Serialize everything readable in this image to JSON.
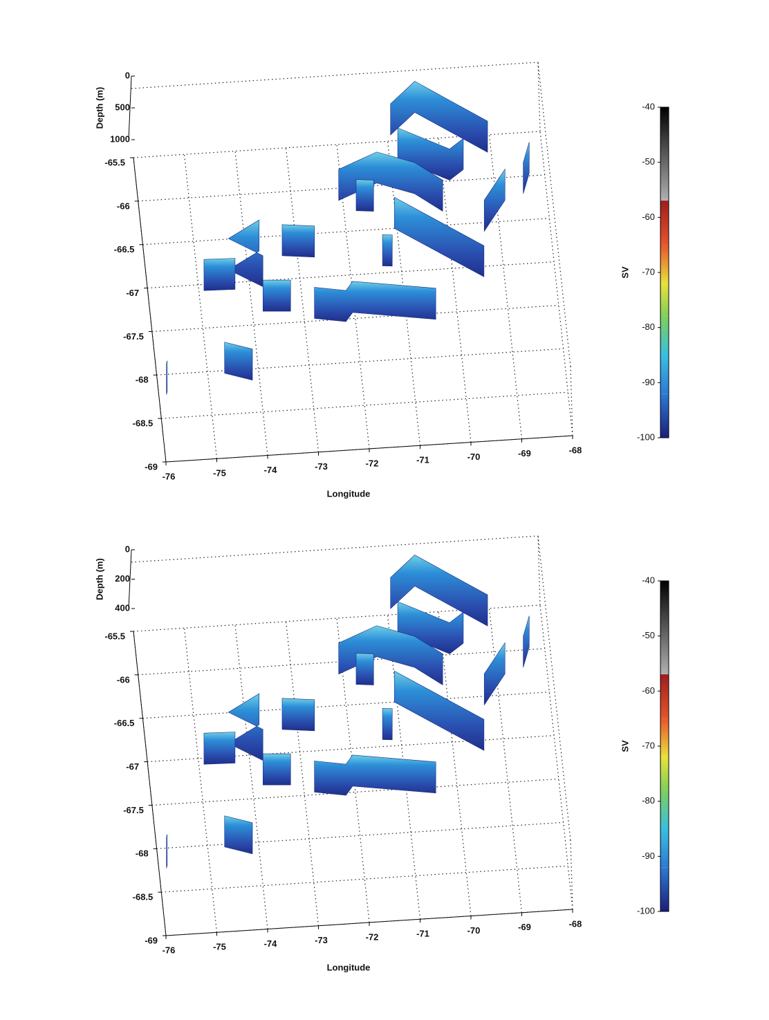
{
  "chart_data": [
    {
      "type": "echogram3d",
      "xlabel": "Longitude",
      "zlabel": "Depth (m)",
      "colorbar_label": "SV",
      "xlim": [
        -76,
        -68
      ],
      "xticks": [
        -76,
        -75,
        -74,
        -73,
        -72,
        -71,
        -70,
        -69,
        -68
      ],
      "ylim": [
        -69,
        -65.5
      ],
      "yticks": [
        -69,
        -68.5,
        -68,
        -67.5,
        -67,
        -66.5,
        -66,
        -65.5
      ],
      "zlim": [
        0,
        1000
      ],
      "zticks": [
        0,
        500,
        1000
      ],
      "clim": [
        -100,
        -40
      ],
      "cticks": [
        -100,
        -90,
        -80,
        -70,
        -60,
        -50,
        -40
      ],
      "colormap": [
        {
          "value": -100,
          "color": "#1b1f7a"
        },
        {
          "value": -92,
          "color": "#2c7bd6"
        },
        {
          "value": -85,
          "color": "#38c0e0"
        },
        {
          "value": -78,
          "color": "#7fcf5a"
        },
        {
          "value": -72,
          "color": "#e9e23a"
        },
        {
          "value": -65,
          "color": "#e8552b"
        },
        {
          "value": -57,
          "color": "#9e1d1d"
        },
        {
          "value": -56.9,
          "color": "#b0b0b0"
        },
        {
          "value": -40,
          "color": "#000000"
        }
      ],
      "transects": [
        {
          "lon": [
            -70.93,
            -70.41,
            -69.07
          ],
          "lat": [
            -65.43,
            -65.19,
            -65.7
          ]
        },
        {
          "lon": [
            -70.84,
            -69.87,
            -69.58
          ],
          "lat": [
            -65.71,
            -65.99,
            -65.88
          ]
        },
        {
          "lon": [
            -72.08,
            -71.3,
            -70.58,
            -70.07
          ],
          "lat": [
            -66.14,
            -65.97,
            -66.12,
            -66.34
          ]
        },
        {
          "lon": [
            -71.05,
            -69.4
          ],
          "lat": [
            -66.5,
            -67.12
          ]
        },
        {
          "lon": [
            -69.3,
            -68.83
          ],
          "lat": [
            -66.6,
            -66.26
          ]
        },
        {
          "lon": [
            -68.46,
            -68.3
          ],
          "lat": [
            -66.2,
            -65.97
          ]
        },
        {
          "lon": [
            -73.74,
            -74.38,
            -73.74
          ],
          "lat": [
            -66.66,
            -66.85,
            -67.07
          ]
        },
        {
          "lon": [
            -74.9,
            -74.29
          ],
          "lat": [
            -67.07,
            -67.08
          ]
        },
        {
          "lon": [
            -73.3,
            -72.67
          ],
          "lat": [
            -66.73,
            -66.77
          ]
        },
        {
          "lon": [
            -73.79,
            -73.25
          ],
          "lat": [
            -67.35,
            -67.37
          ]
        },
        {
          "lon": [
            -72.8,
            -72.19,
            -72.04,
            -70.43
          ],
          "lat": [
            -67.47,
            -67.53,
            -67.43,
            -67.57
          ]
        },
        {
          "lon": [
            -74.67,
            -74.14
          ],
          "lat": [
            -68.03,
            -68.13
          ]
        },
        {
          "lon": [
            -75.85,
            -75.83
          ],
          "lat": [
            -68.23,
            -68.2
          ]
        },
        {
          "lon": [
            -71.76,
            -71.42
          ],
          "lat": [
            -66.27,
            -66.29
          ]
        },
        {
          "lon": [
            -71.36,
            -71.17
          ],
          "lat": [
            -66.92,
            -66.93
          ]
        }
      ]
    },
    {
      "type": "echogram3d",
      "xlabel": "Longitude",
      "zlabel": "Depth (m)",
      "colorbar_label": "SV",
      "xlim": [
        -76,
        -68
      ],
      "xticks": [
        -76,
        -75,
        -74,
        -73,
        -72,
        -71,
        -70,
        -69,
        -68
      ],
      "ylim": [
        -69,
        -65.5
      ],
      "yticks": [
        -69,
        -68.5,
        -68,
        -67.5,
        -67,
        -66.5,
        -66,
        -65.5
      ],
      "zlim": [
        0,
        400
      ],
      "zticks": [
        0,
        200,
        400
      ],
      "clim": [
        -100,
        -40
      ],
      "cticks": [
        -100,
        -90,
        -80,
        -70,
        -60,
        -50,
        -40
      ],
      "colormap": [
        {
          "value": -100,
          "color": "#1b1f7a"
        },
        {
          "value": -92,
          "color": "#2c7bd6"
        },
        {
          "value": -85,
          "color": "#38c0e0"
        },
        {
          "value": -78,
          "color": "#7fcf5a"
        },
        {
          "value": -72,
          "color": "#e9e23a"
        },
        {
          "value": -65,
          "color": "#e8552b"
        },
        {
          "value": -57,
          "color": "#9e1d1d"
        },
        {
          "value": -56.9,
          "color": "#b0b0b0"
        },
        {
          "value": -40,
          "color": "#000000"
        }
      ],
      "transects": [
        {
          "lon": [
            -70.93,
            -70.41,
            -69.07
          ],
          "lat": [
            -65.43,
            -65.19,
            -65.7
          ]
        },
        {
          "lon": [
            -70.84,
            -69.87,
            -69.58
          ],
          "lat": [
            -65.71,
            -65.99,
            -65.88
          ]
        },
        {
          "lon": [
            -72.08,
            -71.3,
            -70.58,
            -70.07
          ],
          "lat": [
            -66.14,
            -65.97,
            -66.12,
            -66.34
          ]
        },
        {
          "lon": [
            -71.05,
            -69.4
          ],
          "lat": [
            -66.5,
            -67.12
          ]
        },
        {
          "lon": [
            -69.3,
            -68.83
          ],
          "lat": [
            -66.6,
            -66.26
          ]
        },
        {
          "lon": [
            -68.46,
            -68.3
          ],
          "lat": [
            -66.2,
            -65.97
          ]
        },
        {
          "lon": [
            -73.74,
            -74.38,
            -73.74
          ],
          "lat": [
            -66.66,
            -66.85,
            -67.07
          ]
        },
        {
          "lon": [
            -74.9,
            -74.29
          ],
          "lat": [
            -67.07,
            -67.08
          ]
        },
        {
          "lon": [
            -73.3,
            -72.67
          ],
          "lat": [
            -66.73,
            -66.77
          ]
        },
        {
          "lon": [
            -73.79,
            -73.25
          ],
          "lat": [
            -67.35,
            -67.37
          ]
        },
        {
          "lon": [
            -72.8,
            -72.19,
            -72.04,
            -70.43
          ],
          "lat": [
            -67.47,
            -67.53,
            -67.43,
            -67.57
          ]
        },
        {
          "lon": [
            -74.67,
            -74.14
          ],
          "lat": [
            -68.03,
            -68.13
          ]
        },
        {
          "lon": [
            -75.85,
            -75.83
          ],
          "lat": [
            -68.23,
            -68.2
          ]
        },
        {
          "lon": [
            -71.76,
            -71.42
          ],
          "lat": [
            -66.27,
            -66.29
          ]
        },
        {
          "lon": [
            -71.36,
            -71.17
          ],
          "lat": [
            -66.92,
            -66.93
          ]
        }
      ]
    }
  ]
}
